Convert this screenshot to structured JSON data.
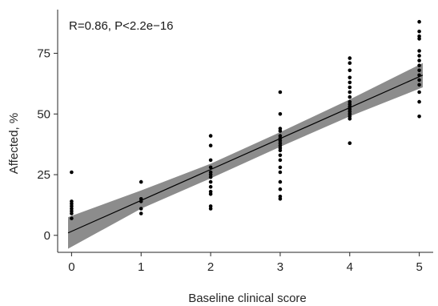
{
  "chart_data": {
    "type": "scatter",
    "title": "",
    "annotation": "R=0.86, P<2.2e−16",
    "xlabel": "Baseline clinical score",
    "ylabel": "Affected, %",
    "xlim": [
      -0.2,
      5.2
    ],
    "ylim": [
      -7,
      93
    ],
    "xticks": [
      0,
      1,
      2,
      3,
      4,
      5
    ],
    "yticks": [
      0,
      25,
      50,
      75
    ],
    "grid": false,
    "legend": "none",
    "colors": {
      "points": "#000000",
      "line": "#000000",
      "band": "#8c8c8c",
      "axis": "#262626"
    },
    "points": [
      {
        "x": 0,
        "y": 26
      },
      {
        "x": 0,
        "y": 14
      },
      {
        "x": 0,
        "y": 13
      },
      {
        "x": 0,
        "y": 12
      },
      {
        "x": 0,
        "y": 11
      },
      {
        "x": 0,
        "y": 10
      },
      {
        "x": 0,
        "y": 9
      },
      {
        "x": 0,
        "y": 7
      },
      {
        "x": 1,
        "y": 22
      },
      {
        "x": 1,
        "y": 15
      },
      {
        "x": 1,
        "y": 14
      },
      {
        "x": 1,
        "y": 11
      },
      {
        "x": 1,
        "y": 9
      },
      {
        "x": 2,
        "y": 41
      },
      {
        "x": 2,
        "y": 37
      },
      {
        "x": 2,
        "y": 31
      },
      {
        "x": 2,
        "y": 28
      },
      {
        "x": 2,
        "y": 26
      },
      {
        "x": 2,
        "y": 25
      },
      {
        "x": 2,
        "y": 24
      },
      {
        "x": 2,
        "y": 22
      },
      {
        "x": 2,
        "y": 20
      },
      {
        "x": 2,
        "y": 18
      },
      {
        "x": 2,
        "y": 17
      },
      {
        "x": 2,
        "y": 12
      },
      {
        "x": 2,
        "y": 11
      },
      {
        "x": 3,
        "y": 59
      },
      {
        "x": 3,
        "y": 50
      },
      {
        "x": 3,
        "y": 44
      },
      {
        "x": 3,
        "y": 43
      },
      {
        "x": 3,
        "y": 41
      },
      {
        "x": 3,
        "y": 40
      },
      {
        "x": 3,
        "y": 39
      },
      {
        "x": 3,
        "y": 38
      },
      {
        "x": 3,
        "y": 37
      },
      {
        "x": 3,
        "y": 36
      },
      {
        "x": 3,
        "y": 35
      },
      {
        "x": 3,
        "y": 33
      },
      {
        "x": 3,
        "y": 31
      },
      {
        "x": 3,
        "y": 28
      },
      {
        "x": 3,
        "y": 26
      },
      {
        "x": 3,
        "y": 22
      },
      {
        "x": 3,
        "y": 19
      },
      {
        "x": 3,
        "y": 16
      },
      {
        "x": 3,
        "y": 15
      },
      {
        "x": 4,
        "y": 73
      },
      {
        "x": 4,
        "y": 71
      },
      {
        "x": 4,
        "y": 68
      },
      {
        "x": 4,
        "y": 65
      },
      {
        "x": 4,
        "y": 63
      },
      {
        "x": 4,
        "y": 61
      },
      {
        "x": 4,
        "y": 59
      },
      {
        "x": 4,
        "y": 57
      },
      {
        "x": 4,
        "y": 55
      },
      {
        "x": 4,
        "y": 54
      },
      {
        "x": 4,
        "y": 53
      },
      {
        "x": 4,
        "y": 52
      },
      {
        "x": 4,
        "y": 51
      },
      {
        "x": 4,
        "y": 50
      },
      {
        "x": 4,
        "y": 49
      },
      {
        "x": 4,
        "y": 48
      },
      {
        "x": 4,
        "y": 38
      },
      {
        "x": 5,
        "y": 88
      },
      {
        "x": 5,
        "y": 84
      },
      {
        "x": 5,
        "y": 82
      },
      {
        "x": 5,
        "y": 81
      },
      {
        "x": 5,
        "y": 76
      },
      {
        "x": 5,
        "y": 74
      },
      {
        "x": 5,
        "y": 72
      },
      {
        "x": 5,
        "y": 70
      },
      {
        "x": 5,
        "y": 68
      },
      {
        "x": 5,
        "y": 66
      },
      {
        "x": 5,
        "y": 64
      },
      {
        "x": 5,
        "y": 62
      },
      {
        "x": 5,
        "y": 59
      },
      {
        "x": 5,
        "y": 55
      },
      {
        "x": 5,
        "y": 49
      }
    ],
    "regression": {
      "x": [
        -0.05,
        5.05
      ],
      "y": [
        1.0,
        66.0
      ]
    },
    "confidence_band": {
      "x": [
        -0.05,
        1,
        2,
        3,
        4,
        5.05
      ],
      "lower": [
        -5.5,
        11.0,
        23.5,
        36.5,
        49.0,
        61.0
      ],
      "upper": [
        7.5,
        18.5,
        29.5,
        42.5,
        56.0,
        71.0
      ]
    }
  }
}
